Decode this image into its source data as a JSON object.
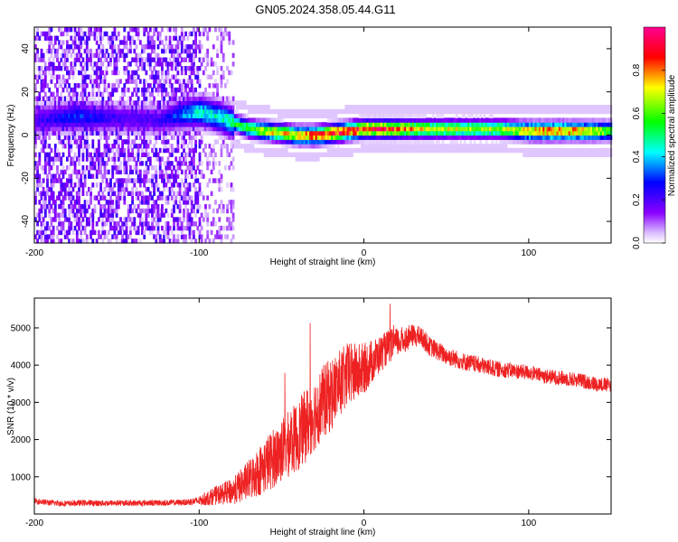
{
  "figure_title": "GN05.2024.358.05.44.G11",
  "chart_data": [
    {
      "type": "heatmap",
      "title": "GN05.2024.358.05.44.G11",
      "xlabel": "Height of straight line (km)",
      "ylabel": "Frequency (Hz)",
      "xlim": [
        -200,
        150
      ],
      "ylim": [
        -50,
        50
      ],
      "xticks": [
        -200,
        -100,
        0,
        100
      ],
      "yticks": [
        -40,
        -20,
        0,
        20,
        40
      ],
      "grid": false,
      "colorbar": {
        "label": "Normalized spectral amplitude",
        "range": [
          0.0,
          1.0
        ],
        "ticks": [
          0.0,
          0.2,
          0.4,
          0.6,
          0.8
        ],
        "colormap": [
          "#ffffff",
          "#8a00ff",
          "#0000ff",
          "#00ffff",
          "#00ff00",
          "#ffff00",
          "#ff0000",
          "#ff00a0"
        ]
      },
      "noise_region": {
        "x_from": -200,
        "x_to": -80,
        "level": 0.2
      },
      "ridge": {
        "x": [
          -200,
          -175,
          -150,
          -125,
          -110,
          -100,
          -90,
          -80,
          -70,
          -60,
          -50,
          -40,
          -30,
          -20,
          -10,
          0,
          10,
          20,
          40,
          60,
          80,
          90,
          100,
          120,
          130,
          150
        ],
        "frequency": [
          6,
          8,
          7,
          6,
          9,
          10,
          8,
          5,
          2,
          1,
          0,
          -1,
          -1,
          0,
          1,
          2,
          2,
          2,
          2,
          2,
          2,
          1.5,
          1,
          1,
          1,
          1
        ],
        "amplitude": [
          0.2,
          0.3,
          0.2,
          0.2,
          0.35,
          0.45,
          0.45,
          0.5,
          0.6,
          0.7,
          0.75,
          0.8,
          0.85,
          0.9,
          0.9,
          0.9,
          0.9,
          0.85,
          0.7,
          0.65,
          0.65,
          0.7,
          0.8,
          0.85,
          0.8,
          0.6
        ]
      }
    },
    {
      "type": "line",
      "xlabel": "Height of straight line (km)",
      "ylabel": "SNR (10 * v/v)",
      "xlim": [
        -200,
        150
      ],
      "ylim": [
        0,
        5800
      ],
      "xticks": [
        -200,
        -100,
        0,
        100
      ],
      "yticks": [
        1000,
        2000,
        3000,
        4000,
        5000
      ],
      "grid": false,
      "series": [
        {
          "color": "#ee2222",
          "x": [
            -200,
            -190,
            -180,
            -170,
            -160,
            -150,
            -140,
            -130,
            -120,
            -110,
            -100,
            -95,
            -90,
            -85,
            -80,
            -75,
            -70,
            -65,
            -60,
            -55,
            -50,
            -45,
            -40,
            -35,
            -30,
            -25,
            -20,
            -15,
            -10,
            -5,
            0,
            5,
            10,
            15,
            20,
            25,
            30,
            35,
            40,
            50,
            60,
            70,
            80,
            90,
            100,
            110,
            120,
            130,
            140,
            150
          ],
          "y": [
            350,
            300,
            280,
            300,
            290,
            300,
            290,
            300,
            300,
            310,
            350,
            420,
            500,
            550,
            600,
            750,
            900,
            1100,
            1300,
            1500,
            1700,
            1900,
            2100,
            2400,
            2700,
            3000,
            3200,
            3500,
            3700,
            3800,
            3900,
            4100,
            4300,
            4500,
            4600,
            4700,
            4800,
            4750,
            4500,
            4250,
            4100,
            4000,
            3900,
            3850,
            3800,
            3700,
            3650,
            3600,
            3500,
            3450
          ],
          "noise": [
            80,
            80,
            80,
            80,
            80,
            80,
            80,
            80,
            80,
            80,
            120,
            200,
            250,
            300,
            350,
            450,
            550,
            650,
            750,
            800,
            850,
            900,
            950,
            1000,
            1000,
            1000,
            1000,
            900,
            900,
            800,
            700,
            600,
            500,
            450,
            400,
            350,
            300,
            280,
            260,
            250,
            240,
            230,
            220,
            210,
            200,
            200,
            200,
            200,
            200,
            200
          ]
        }
      ]
    }
  ]
}
